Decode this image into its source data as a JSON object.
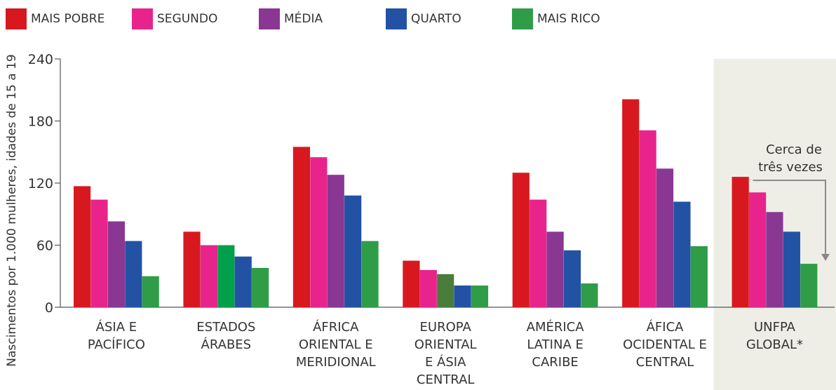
{
  "legend": [
    {
      "label": "MAIS POBRE",
      "color": "#D7191F"
    },
    {
      "label": "SEGUNDO",
      "color": "#E8248C"
    },
    {
      "label": "MÉDIA",
      "color": "#8A3794"
    },
    {
      "label": "QUARTO",
      "color": "#2352A5"
    },
    {
      "label": "MAIS RICO",
      "color": "#2F9D48"
    }
  ],
  "chart_data": {
    "type": "bar",
    "ylabel": "Nascimentos por 1.000 mulheres, idades de 15 a 19",
    "ylim": [
      0,
      240
    ],
    "yticks": [
      0,
      60,
      120,
      180,
      240
    ],
    "categories": [
      [
        "ÁSIA E",
        "PACÍFICO"
      ],
      [
        "ESTADOS",
        "ÁRABES"
      ],
      [
        "ÁFRICA",
        "ORIENTAL E",
        "MERIDIONAL"
      ],
      [
        "EUROPA",
        "ORIENTAL",
        "E ÁSIA",
        "CENTRAL"
      ],
      [
        "AMÉRICA",
        "LATINA E",
        "CARIBE"
      ],
      [
        "ÁFICA",
        "OCIDENTAL E",
        "CENTRAL"
      ],
      [
        "UNFPA",
        "GLOBAL*"
      ]
    ],
    "series": [
      {
        "name": "MAIS POBRE",
        "color": "#D7191F",
        "values": [
          117,
          73,
          155,
          45,
          130,
          201,
          126
        ]
      },
      {
        "name": "SEGUNDO",
        "color": "#E8248C",
        "values": [
          104,
          60,
          145,
          36,
          104,
          171,
          111
        ]
      },
      {
        "name": "MÉDIA",
        "color": "#8A3794",
        "values": [
          83,
          60,
          128,
          32,
          73,
          134,
          92
        ]
      },
      {
        "name": "QUARTO",
        "color": "#2352A5",
        "values": [
          64,
          49,
          108,
          21,
          55,
          102,
          73
        ]
      },
      {
        "name": "MAIS RICO",
        "color": "#2F9D48",
        "values": [
          30,
          38,
          64,
          21,
          23,
          59,
          42
        ]
      }
    ],
    "bar_color_overrides": [
      {
        "category": 1,
        "series": 2,
        "color": "#00A04A"
      },
      {
        "category": 3,
        "series": 2,
        "color": "#4A7D3C"
      }
    ],
    "highlight": {
      "category": 6,
      "color": "#EFEEE6"
    },
    "annotation": {
      "lines": [
        "Cerca de",
        "três vezes"
      ],
      "category": 6
    }
  }
}
